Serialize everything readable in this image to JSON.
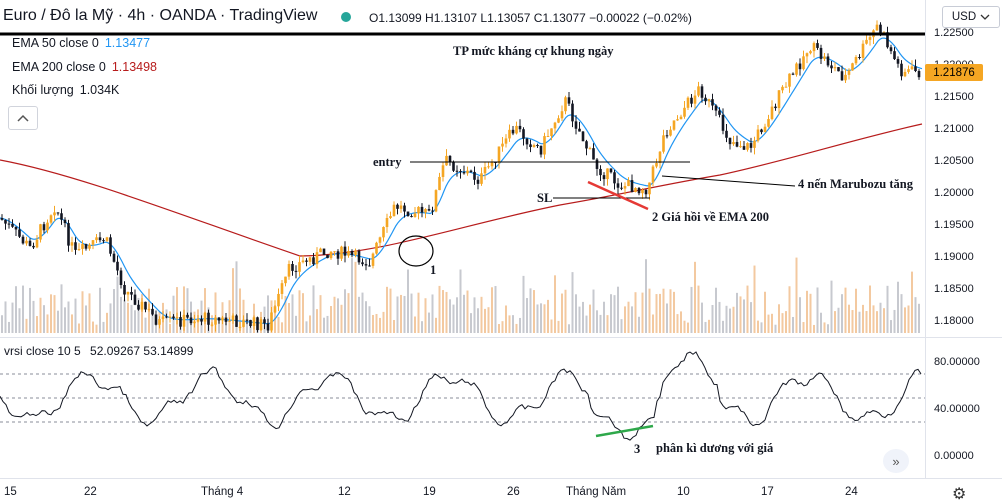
{
  "header": {
    "title": "Euro / Đô la Mỹ · 4h · OANDA · TradingView",
    "ohlc": "O1.13099 H1.13107 L1.13057 C1.13077 −0.00022 (−0.02%)"
  },
  "indicators": [
    {
      "name": "EMA 50 close 0",
      "value": "1.13477",
      "color": "#2196f3"
    },
    {
      "name": "EMA 200 close 0",
      "value": "1.13498",
      "color": "#b71c1c"
    },
    {
      "name": "Khối lượng",
      "value": "1.034K",
      "color": "#131722"
    }
  ],
  "collapse_icon": "chevron-up-icon",
  "currency": {
    "label": "USD",
    "icon": "chevron-down-icon"
  },
  "price_axis": [
    "1.22500",
    "1.22000",
    "1.21500",
    "1.21000",
    "1.20500",
    "1.20000",
    "1.19500",
    "1.19000",
    "1.18500",
    "1.18000"
  ],
  "current_price": "1.21876",
  "oscillator": {
    "label": "vrsi close 10 5",
    "values": "52.09267  53.14899",
    "axis": [
      "80.00000",
      "40.00000",
      "0.00000"
    ]
  },
  "time_axis": [
    "15",
    "22",
    "Tháng 4",
    "12",
    "19",
    "26",
    "Tháng Năm",
    "10",
    "17",
    "24"
  ],
  "annotations": {
    "tp": "TP mức kháng cự khung ngày",
    "entry": "entry",
    "sl": "SL",
    "one": "1",
    "two": "2  Giá hồi về EMA 200",
    "three": "3",
    "three_text": "phân kì dương với giá",
    "four": "4  nến Marubozu tăng"
  },
  "colors": {
    "bull": "#f5a623",
    "bear": "#131722",
    "ema50": "#2196f3",
    "ema200": "#b71c1c",
    "volume_bull": "#f3c9a0",
    "volume_bear": "#c7c9cf",
    "divergence": "#2ea84a",
    "ema_touch": "#e53935"
  },
  "scroll_icon": "double-chevron-right-icon",
  "settings_icon": "gear-icon"
}
